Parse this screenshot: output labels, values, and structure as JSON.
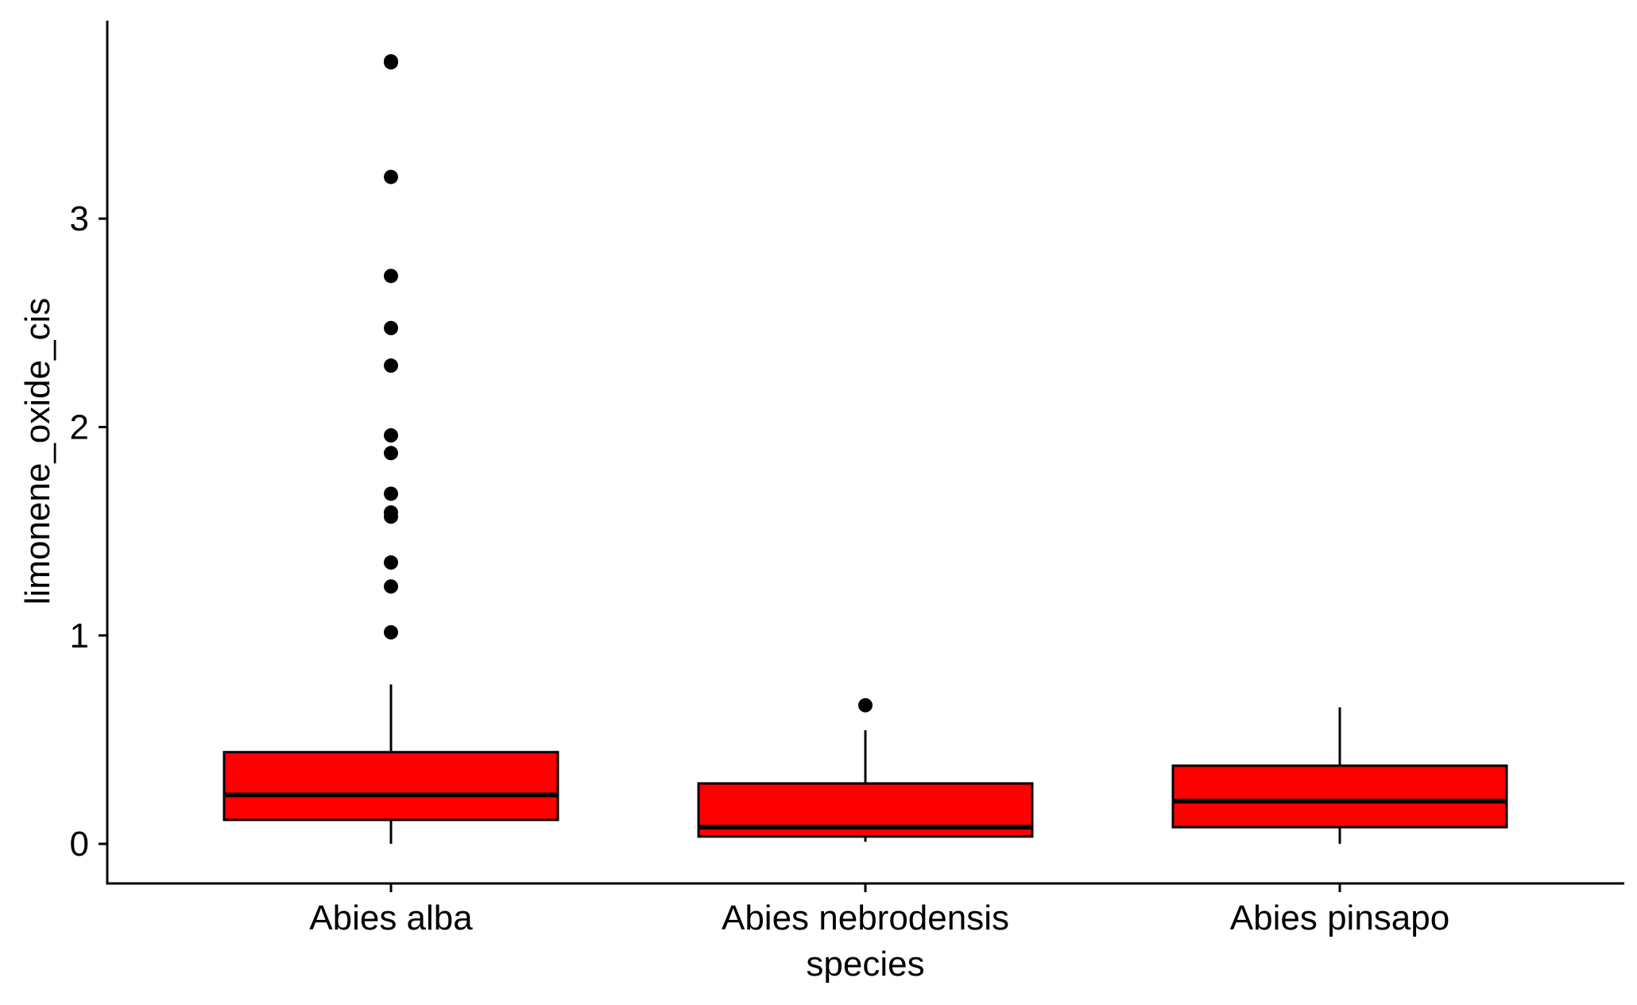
{
  "chart_data": {
    "type": "box",
    "title": "",
    "xlabel": "species",
    "ylabel": "limonene_oxide_cis",
    "categories": [
      "Abies alba",
      "Abies nebrodensis",
      "Abies pinsapo"
    ],
    "ylim": [
      -0.19,
      3.95
    ],
    "yticks": [
      0,
      1,
      2,
      3
    ],
    "ytick_labels": [
      "0",
      "1",
      "2",
      "3"
    ],
    "grid": false,
    "legend": "none",
    "box_fill": "#ff0000",
    "box_stroke": "#000000",
    "boxes": [
      {
        "category": "Abies alba",
        "whisker_low": 0.0,
        "q1": 0.115,
        "median": 0.235,
        "q3": 0.44,
        "whisker_high": 0.765,
        "outliers": [
          1.015,
          1.235,
          1.35,
          1.57,
          1.59,
          1.68,
          1.875,
          1.96,
          2.295,
          2.475,
          2.725,
          3.2,
          3.75,
          3.755
        ]
      },
      {
        "category": "Abies nebrodensis",
        "whisker_low": 0.01,
        "q1": 0.035,
        "median": 0.08,
        "q3": 0.29,
        "whisker_high": 0.545,
        "outliers": [
          0.665
        ]
      },
      {
        "category": "Abies pinsapo",
        "whisker_low": 0.0,
        "q1": 0.08,
        "median": 0.205,
        "q3": 0.375,
        "whisker_high": 0.655,
        "outliers": []
      }
    ]
  }
}
